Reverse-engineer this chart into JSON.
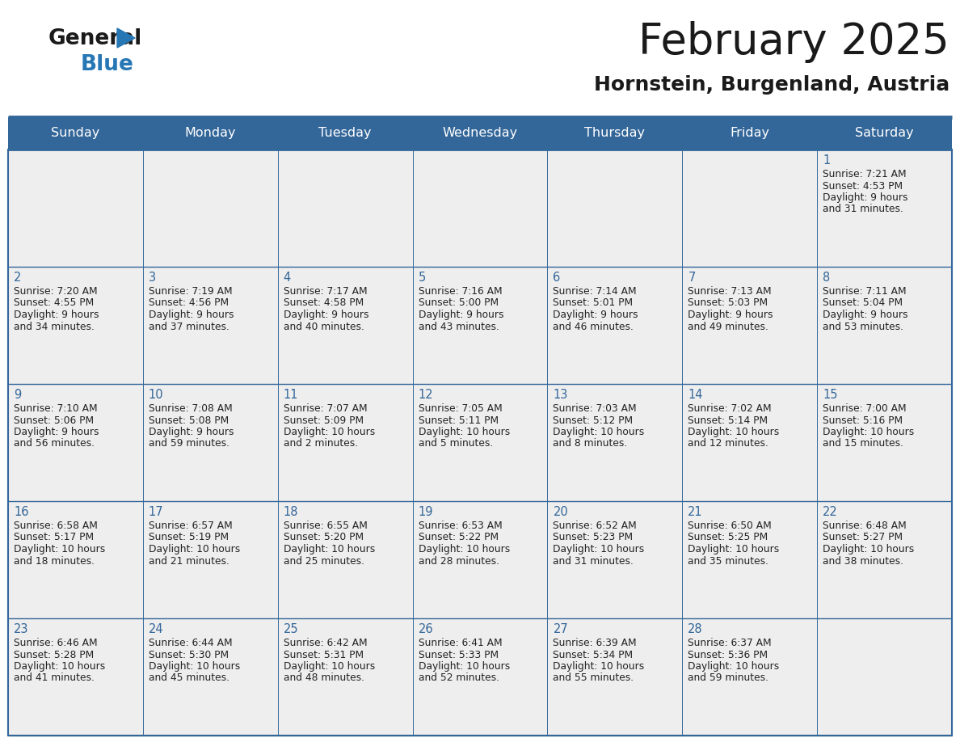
{
  "title": "February 2025",
  "subtitle": "Hornstein, Burgenland, Austria",
  "days_of_week": [
    "Sunday",
    "Monday",
    "Tuesday",
    "Wednesday",
    "Thursday",
    "Friday",
    "Saturday"
  ],
  "header_bg": "#336699",
  "header_text": "#ffffff",
  "cell_bg": "#eeeeee",
  "day_number_color": "#336699",
  "info_text_color": "#222222",
  "border_color": "#336699",
  "days": [
    {
      "day": 1,
      "col": 6,
      "row": 0,
      "sunrise": "7:21 AM",
      "sunset": "4:53 PM",
      "daylight_h": "9 hours",
      "daylight_m": "31 minutes"
    },
    {
      "day": 2,
      "col": 0,
      "row": 1,
      "sunrise": "7:20 AM",
      "sunset": "4:55 PM",
      "daylight_h": "9 hours",
      "daylight_m": "34 minutes"
    },
    {
      "day": 3,
      "col": 1,
      "row": 1,
      "sunrise": "7:19 AM",
      "sunset": "4:56 PM",
      "daylight_h": "9 hours",
      "daylight_m": "37 minutes"
    },
    {
      "day": 4,
      "col": 2,
      "row": 1,
      "sunrise": "7:17 AM",
      "sunset": "4:58 PM",
      "daylight_h": "9 hours",
      "daylight_m": "40 minutes"
    },
    {
      "day": 5,
      "col": 3,
      "row": 1,
      "sunrise": "7:16 AM",
      "sunset": "5:00 PM",
      "daylight_h": "9 hours",
      "daylight_m": "43 minutes"
    },
    {
      "day": 6,
      "col": 4,
      "row": 1,
      "sunrise": "7:14 AM",
      "sunset": "5:01 PM",
      "daylight_h": "9 hours",
      "daylight_m": "46 minutes"
    },
    {
      "day": 7,
      "col": 5,
      "row": 1,
      "sunrise": "7:13 AM",
      "sunset": "5:03 PM",
      "daylight_h": "9 hours",
      "daylight_m": "49 minutes"
    },
    {
      "day": 8,
      "col": 6,
      "row": 1,
      "sunrise": "7:11 AM",
      "sunset": "5:04 PM",
      "daylight_h": "9 hours",
      "daylight_m": "53 minutes"
    },
    {
      "day": 9,
      "col": 0,
      "row": 2,
      "sunrise": "7:10 AM",
      "sunset": "5:06 PM",
      "daylight_h": "9 hours",
      "daylight_m": "56 minutes"
    },
    {
      "day": 10,
      "col": 1,
      "row": 2,
      "sunrise": "7:08 AM",
      "sunset": "5:08 PM",
      "daylight_h": "9 hours",
      "daylight_m": "59 minutes"
    },
    {
      "day": 11,
      "col": 2,
      "row": 2,
      "sunrise": "7:07 AM",
      "sunset": "5:09 PM",
      "daylight_h": "10 hours",
      "daylight_m": "2 minutes"
    },
    {
      "day": 12,
      "col": 3,
      "row": 2,
      "sunrise": "7:05 AM",
      "sunset": "5:11 PM",
      "daylight_h": "10 hours",
      "daylight_m": "5 minutes"
    },
    {
      "day": 13,
      "col": 4,
      "row": 2,
      "sunrise": "7:03 AM",
      "sunset": "5:12 PM",
      "daylight_h": "10 hours",
      "daylight_m": "8 minutes"
    },
    {
      "day": 14,
      "col": 5,
      "row": 2,
      "sunrise": "7:02 AM",
      "sunset": "5:14 PM",
      "daylight_h": "10 hours",
      "daylight_m": "12 minutes"
    },
    {
      "day": 15,
      "col": 6,
      "row": 2,
      "sunrise": "7:00 AM",
      "sunset": "5:16 PM",
      "daylight_h": "10 hours",
      "daylight_m": "15 minutes"
    },
    {
      "day": 16,
      "col": 0,
      "row": 3,
      "sunrise": "6:58 AM",
      "sunset": "5:17 PM",
      "daylight_h": "10 hours",
      "daylight_m": "18 minutes"
    },
    {
      "day": 17,
      "col": 1,
      "row": 3,
      "sunrise": "6:57 AM",
      "sunset": "5:19 PM",
      "daylight_h": "10 hours",
      "daylight_m": "21 minutes"
    },
    {
      "day": 18,
      "col": 2,
      "row": 3,
      "sunrise": "6:55 AM",
      "sunset": "5:20 PM",
      "daylight_h": "10 hours",
      "daylight_m": "25 minutes"
    },
    {
      "day": 19,
      "col": 3,
      "row": 3,
      "sunrise": "6:53 AM",
      "sunset": "5:22 PM",
      "daylight_h": "10 hours",
      "daylight_m": "28 minutes"
    },
    {
      "day": 20,
      "col": 4,
      "row": 3,
      "sunrise": "6:52 AM",
      "sunset": "5:23 PM",
      "daylight_h": "10 hours",
      "daylight_m": "31 minutes"
    },
    {
      "day": 21,
      "col": 5,
      "row": 3,
      "sunrise": "6:50 AM",
      "sunset": "5:25 PM",
      "daylight_h": "10 hours",
      "daylight_m": "35 minutes"
    },
    {
      "day": 22,
      "col": 6,
      "row": 3,
      "sunrise": "6:48 AM",
      "sunset": "5:27 PM",
      "daylight_h": "10 hours",
      "daylight_m": "38 minutes"
    },
    {
      "day": 23,
      "col": 0,
      "row": 4,
      "sunrise": "6:46 AM",
      "sunset": "5:28 PM",
      "daylight_h": "10 hours",
      "daylight_m": "41 minutes"
    },
    {
      "day": 24,
      "col": 1,
      "row": 4,
      "sunrise": "6:44 AM",
      "sunset": "5:30 PM",
      "daylight_h": "10 hours",
      "daylight_m": "45 minutes"
    },
    {
      "day": 25,
      "col": 2,
      "row": 4,
      "sunrise": "6:42 AM",
      "sunset": "5:31 PM",
      "daylight_h": "10 hours",
      "daylight_m": "48 minutes"
    },
    {
      "day": 26,
      "col": 3,
      "row": 4,
      "sunrise": "6:41 AM",
      "sunset": "5:33 PM",
      "daylight_h": "10 hours",
      "daylight_m": "52 minutes"
    },
    {
      "day": 27,
      "col": 4,
      "row": 4,
      "sunrise": "6:39 AM",
      "sunset": "5:34 PM",
      "daylight_h": "10 hours",
      "daylight_m": "55 minutes"
    },
    {
      "day": 28,
      "col": 5,
      "row": 4,
      "sunrise": "6:37 AM",
      "sunset": "5:36 PM",
      "daylight_h": "10 hours",
      "daylight_m": "59 minutes"
    }
  ],
  "num_rows": 5
}
